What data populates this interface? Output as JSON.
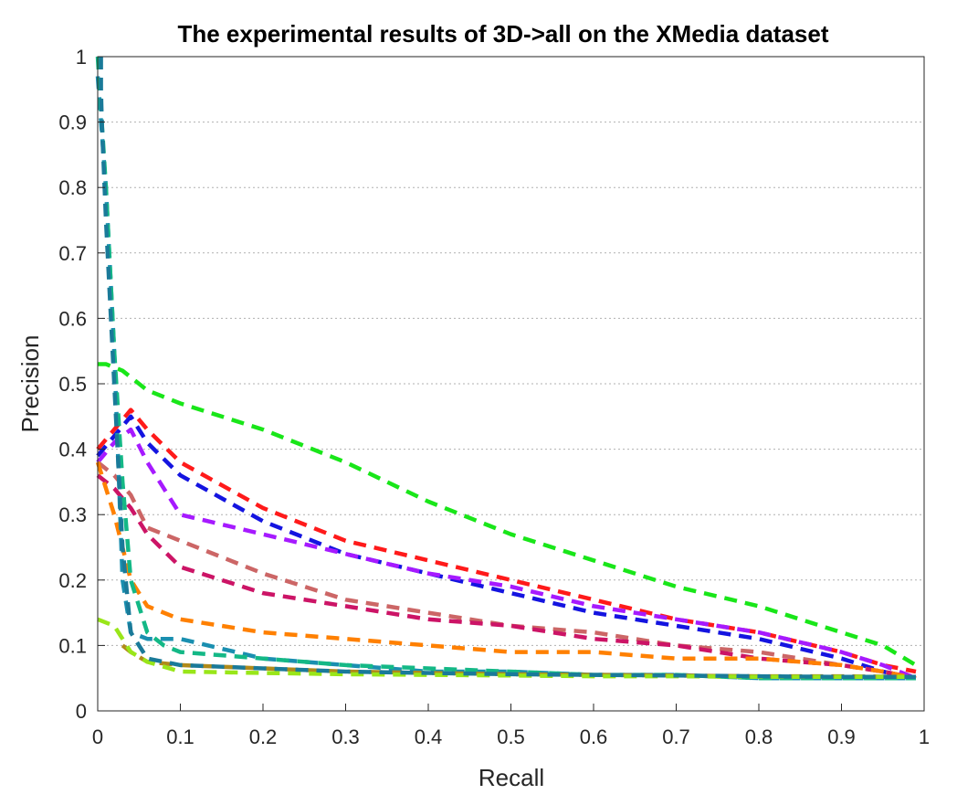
{
  "chart_data": {
    "type": "line",
    "title": "The experimental results of 3D->all on the XMedia dataset",
    "xlabel": "Recall",
    "ylabel": "Precision",
    "xlim": [
      0,
      1
    ],
    "ylim": [
      0,
      1
    ],
    "xticks": [
      "0",
      "0.1",
      "0.2",
      "0.3",
      "0.4",
      "0.5",
      "0.6",
      "0.7",
      "0.8",
      "0.9",
      "1"
    ],
    "yticks": [
      "0",
      "0.1",
      "0.2",
      "0.3",
      "0.4",
      "0.5",
      "0.6",
      "0.7",
      "0.8",
      "0.9",
      "1"
    ],
    "grid": "horizontal-dotted",
    "legend": "none",
    "series": [
      {
        "color": "#19e619",
        "x": [
          0,
          0.01,
          0.03,
          0.06,
          0.1,
          0.2,
          0.3,
          0.4,
          0.5,
          0.6,
          0.7,
          0.8,
          0.9,
          0.95,
          0.99
        ],
        "y": [
          0.53,
          0.53,
          0.52,
          0.49,
          0.47,
          0.43,
          0.38,
          0.32,
          0.27,
          0.23,
          0.19,
          0.16,
          0.12,
          0.1,
          0.07
        ]
      },
      {
        "color": "#ff1a1a",
        "x": [
          0,
          0.02,
          0.04,
          0.06,
          0.1,
          0.2,
          0.3,
          0.4,
          0.5,
          0.6,
          0.7,
          0.8,
          0.9,
          0.95,
          0.99
        ],
        "y": [
          0.4,
          0.43,
          0.46,
          0.43,
          0.38,
          0.31,
          0.26,
          0.23,
          0.2,
          0.17,
          0.14,
          0.12,
          0.09,
          0.07,
          0.06
        ]
      },
      {
        "color": "#1414e0",
        "x": [
          0,
          0.02,
          0.04,
          0.06,
          0.1,
          0.2,
          0.3,
          0.4,
          0.5,
          0.6,
          0.7,
          0.8,
          0.9,
          0.95,
          0.99
        ],
        "y": [
          0.39,
          0.42,
          0.45,
          0.41,
          0.36,
          0.29,
          0.24,
          0.21,
          0.18,
          0.15,
          0.13,
          0.11,
          0.08,
          0.06,
          0.05
        ]
      },
      {
        "color": "#a61aff",
        "x": [
          0,
          0.02,
          0.04,
          0.06,
          0.1,
          0.2,
          0.3,
          0.4,
          0.5,
          0.6,
          0.7,
          0.8,
          0.9,
          0.95,
          0.99
        ],
        "y": [
          0.38,
          0.41,
          0.43,
          0.38,
          0.3,
          0.27,
          0.24,
          0.21,
          0.19,
          0.16,
          0.14,
          0.12,
          0.09,
          0.07,
          0.05
        ]
      },
      {
        "color": "#cc6666",
        "x": [
          0,
          0.02,
          0.04,
          0.06,
          0.1,
          0.2,
          0.3,
          0.4,
          0.5,
          0.6,
          0.7,
          0.8,
          0.9,
          0.95,
          0.99
        ],
        "y": [
          0.38,
          0.36,
          0.33,
          0.28,
          0.26,
          0.21,
          0.17,
          0.15,
          0.13,
          0.12,
          0.1,
          0.09,
          0.07,
          0.06,
          0.05
        ]
      },
      {
        "color": "#cc1466",
        "x": [
          0,
          0.02,
          0.04,
          0.06,
          0.1,
          0.2,
          0.3,
          0.4,
          0.5,
          0.6,
          0.7,
          0.8,
          0.9,
          0.95,
          0.99
        ],
        "y": [
          0.36,
          0.34,
          0.31,
          0.27,
          0.22,
          0.18,
          0.16,
          0.14,
          0.13,
          0.11,
          0.1,
          0.08,
          0.07,
          0.06,
          0.05
        ]
      },
      {
        "color": "#ff8000",
        "x": [
          0,
          0.02,
          0.03,
          0.04,
          0.06,
          0.1,
          0.2,
          0.3,
          0.4,
          0.5,
          0.6,
          0.7,
          0.8,
          0.9,
          0.95,
          0.99
        ],
        "y": [
          0.38,
          0.3,
          0.25,
          0.2,
          0.16,
          0.14,
          0.12,
          0.11,
          0.1,
          0.09,
          0.09,
          0.08,
          0.08,
          0.07,
          0.06,
          0.05
        ]
      },
      {
        "color": "#1a8fb0",
        "x": [
          0,
          0.01,
          0.02,
          0.03,
          0.04,
          0.06,
          0.1,
          0.2,
          0.3,
          0.4,
          0.5,
          0.6,
          0.7,
          0.8,
          0.9,
          0.95,
          0.99
        ],
        "y": [
          0.97,
          0.8,
          0.55,
          0.2,
          0.12,
          0.11,
          0.11,
          0.08,
          0.07,
          0.06,
          0.06,
          0.055,
          0.055,
          0.05,
          0.05,
          0.05,
          0.05
        ]
      },
      {
        "color": "#14b886",
        "x": [
          0,
          0.01,
          0.02,
          0.03,
          0.04,
          0.06,
          0.08,
          0.1,
          0.2,
          0.3,
          0.4,
          0.5,
          0.6,
          0.7,
          0.8,
          0.9,
          0.99
        ],
        "y": [
          1.0,
          0.8,
          0.55,
          0.35,
          0.2,
          0.12,
          0.1,
          0.09,
          0.08,
          0.07,
          0.065,
          0.06,
          0.055,
          0.055,
          0.05,
          0.05,
          0.05
        ]
      },
      {
        "color": "#b08a1a",
        "x": [
          0.03,
          0.04,
          0.06,
          0.1,
          0.2,
          0.3,
          0.4,
          0.5,
          0.6,
          0.7,
          0.8,
          0.9,
          0.99
        ],
        "y": [
          0.1,
          0.09,
          0.075,
          0.07,
          0.065,
          0.06,
          0.058,
          0.056,
          0.055,
          0.054,
          0.053,
          0.053,
          0.052
        ]
      },
      {
        "color": "#99e619",
        "x": [
          0,
          0.02,
          0.03,
          0.04,
          0.06,
          0.1,
          0.2,
          0.3,
          0.4,
          0.5,
          0.6,
          0.7,
          0.8,
          0.9,
          0.99
        ],
        "y": [
          0.14,
          0.13,
          0.11,
          0.09,
          0.075,
          0.06,
          0.058,
          0.056,
          0.055,
          0.054,
          0.053,
          0.053,
          0.052,
          0.052,
          0.052
        ]
      },
      {
        "color": "#1a7a99",
        "x": [
          0.004,
          0.004,
          0.005,
          0.01,
          0.02,
          0.03,
          0.04,
          0.06,
          0.1,
          0.2,
          0.3,
          0.4,
          0.5,
          0.6,
          0.7,
          0.8,
          0.9,
          0.99
        ],
        "y": [
          1.0,
          0.95,
          0.9,
          0.75,
          0.5,
          0.25,
          0.12,
          0.08,
          0.07,
          0.065,
          0.06,
          0.058,
          0.056,
          0.055,
          0.054,
          0.053,
          0.052,
          0.052
        ]
      }
    ]
  }
}
